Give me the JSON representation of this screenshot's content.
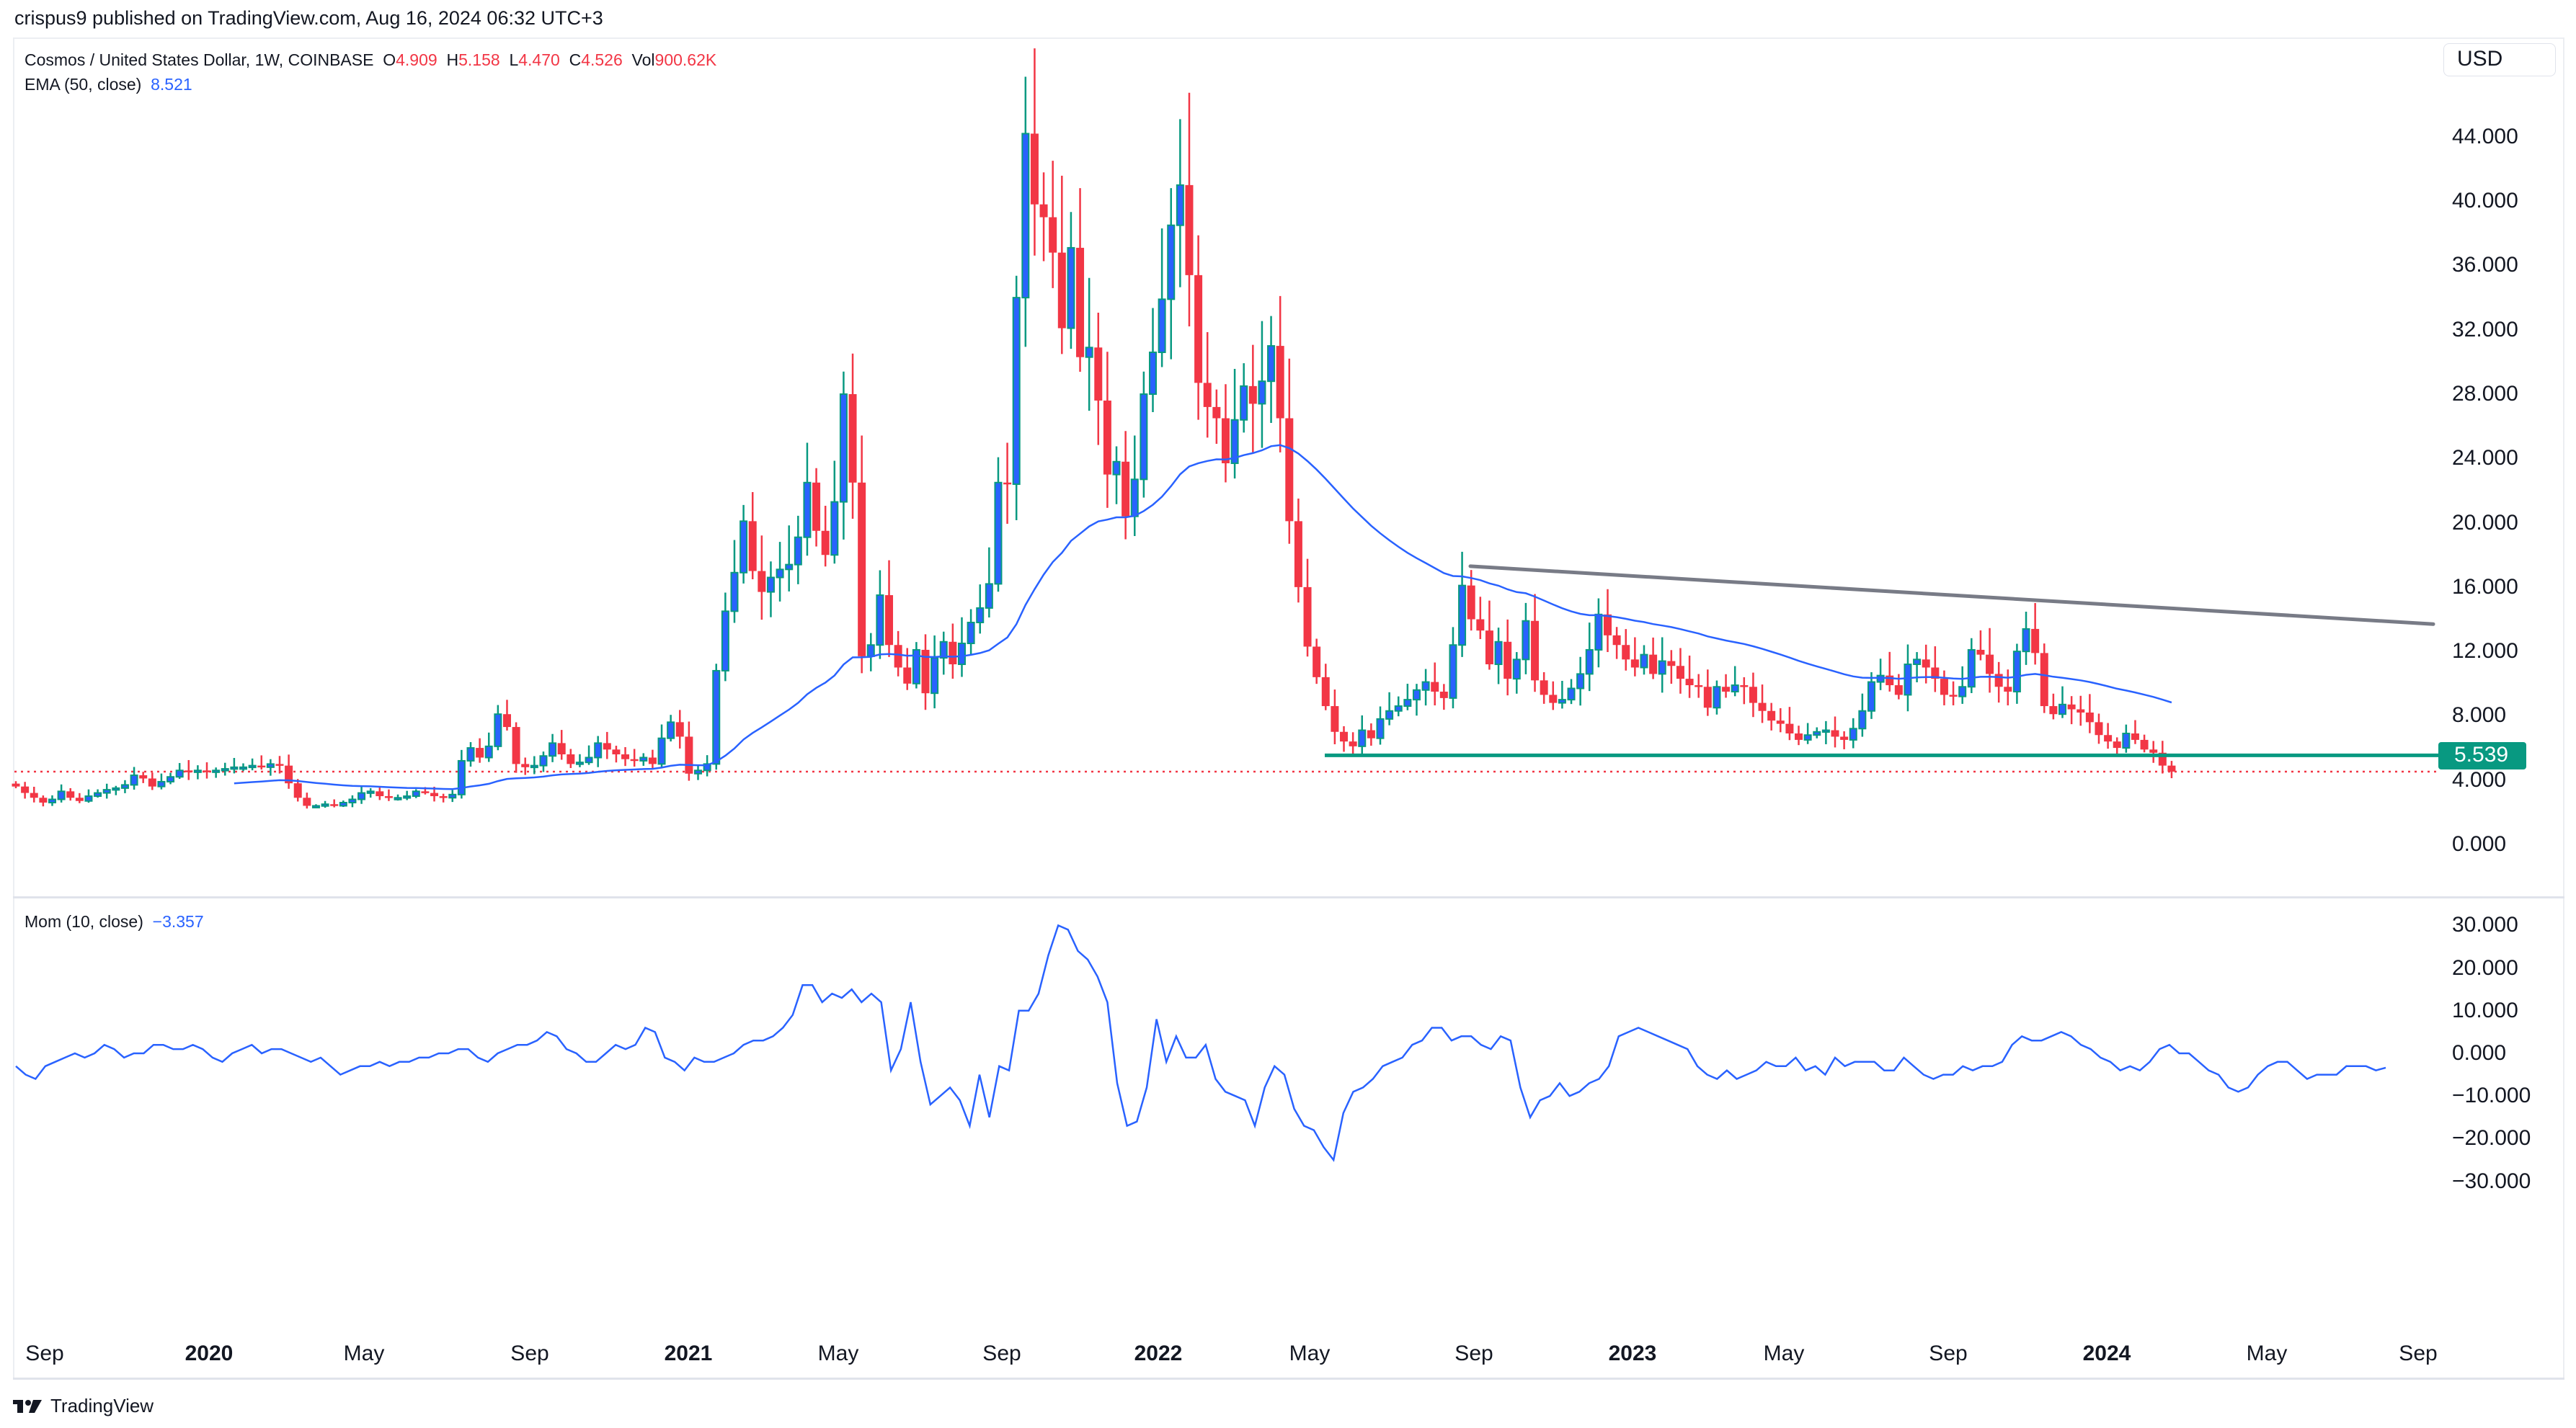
{
  "header": {
    "published": "crispus9 published on TradingView.com, Aug 16, 2024 06:32 UTC+3"
  },
  "legend": {
    "symbol": "Cosmos / United States Dollar, 1W, COINBASE",
    "o_label": "O",
    "o": "4.909",
    "h_label": "H",
    "h": "5.158",
    "l_label": "L",
    "l": "4.470",
    "c_label": "C",
    "c": "4.526",
    "vol_label": "Vol",
    "vol": "900.62K",
    "ema_label": "EMA (50, close)",
    "ema": "8.521",
    "mom_label": "Mom (10, close)",
    "mom": "−3.357"
  },
  "currency_button": "USD",
  "price_tag": "5.539",
  "price_axis": [
    "44.000",
    "40.000",
    "36.000",
    "32.000",
    "28.000",
    "24.000",
    "20.000",
    "16.000",
    "12.000",
    "8.000",
    "4.000",
    "0.000"
  ],
  "mom_axis": [
    "30.000",
    "20.000",
    "10.000",
    "0.000",
    "−10.000",
    "−20.000",
    "−30.000"
  ],
  "time_axis": [
    {
      "label": "Sep",
      "bold": false
    },
    {
      "label": "2020",
      "bold": true
    },
    {
      "label": "May",
      "bold": false
    },
    {
      "label": "Sep",
      "bold": false
    },
    {
      "label": "2021",
      "bold": true
    },
    {
      "label": "May",
      "bold": false
    },
    {
      "label": "Sep",
      "bold": false
    },
    {
      "label": "2022",
      "bold": true
    },
    {
      "label": "May",
      "bold": false
    },
    {
      "label": "Sep",
      "bold": false
    },
    {
      "label": "2023",
      "bold": true
    },
    {
      "label": "May",
      "bold": false
    },
    {
      "label": "Sep",
      "bold": false
    },
    {
      "label": "2024",
      "bold": true
    },
    {
      "label": "May",
      "bold": false
    },
    {
      "label": "Sep",
      "bold": false
    }
  ],
  "footer": {
    "brand": "TradingView"
  },
  "colors": {
    "up_fill": "#2962ff",
    "up_border": "#089981",
    "down": "#f23645",
    "ema": "#2962ff",
    "mom": "#2962ff",
    "trendline": "#787b86",
    "support": "#089981",
    "last_price": "#f23645"
  },
  "chart_data": [
    {
      "type": "candlestick",
      "title": "Cosmos / United States Dollar, 1W, COINBASE",
      "ylabel": "USD",
      "ylim": [
        0,
        46
      ],
      "x_range": [
        "2019-08",
        "2024-09"
      ],
      "x_ticks": [
        "Sep",
        "2020",
        "May",
        "Sep",
        "2021",
        "May",
        "Sep",
        "2022",
        "May",
        "Sep",
        "2023",
        "May",
        "Sep",
        "2024",
        "May",
        "Sep"
      ],
      "y_ticks": [
        0,
        4,
        8,
        12,
        16,
        20,
        24,
        28,
        32,
        36,
        40,
        44
      ],
      "last": {
        "open": 4.909,
        "high": 5.158,
        "low": 4.47,
        "close": 4.526,
        "volume": "900.62K"
      },
      "overlays": [
        {
          "name": "EMA (50, close)",
          "last": 8.521
        },
        {
          "name": "Descending trendline",
          "from": {
            "x": "2022-09",
            "y": 17.3
          },
          "to": {
            "x": "2024-08",
            "y": 13.7
          }
        },
        {
          "name": "Horizontal support",
          "y": 5.539,
          "from_x": "2022-05"
        },
        {
          "name": "Last price line",
          "y": 4.526,
          "style": "dotted"
        }
      ],
      "closes_weekly": [
        3.6,
        3.2,
        2.9,
        2.6,
        2.8,
        3.3,
        2.9,
        2.7,
        3.0,
        3.2,
        3.4,
        3.5,
        3.7,
        4.3,
        4.1,
        3.6,
        3.9,
        4.2,
        4.6,
        4.5,
        4.6,
        4.5,
        4.6,
        4.7,
        4.8,
        4.8,
        4.9,
        4.8,
        5.0,
        4.9,
        3.8,
        2.9,
        2.4,
        2.4,
        2.5,
        2.4,
        2.6,
        2.8,
        3.2,
        3.3,
        3.0,
        2.9,
        2.9,
        3.0,
        3.3,
        3.2,
        3.0,
        2.9,
        3.1,
        5.2,
        6.0,
        5.4,
        6.1,
        8.1,
        7.3,
        5.0,
        4.8,
        4.9,
        5.5,
        6.3,
        5.6,
        5.0,
        5.1,
        5.4,
        6.3,
        5.9,
        5.6,
        5.3,
        5.2,
        5.4,
        5.0,
        6.6,
        7.6,
        6.7,
        4.4,
        4.6,
        5.0,
        10.8,
        14.5,
        16.9,
        20.1,
        17.0,
        15.7,
        16.6,
        17.1,
        17.4,
        19.1,
        22.5,
        19.5,
        18.0,
        21.3,
        28.0,
        22.5,
        11.7,
        12.4,
        15.5,
        12.4,
        11.0,
        10.0,
        12.1,
        9.4,
        11.6,
        12.6,
        11.2,
        12.5,
        13.8,
        14.7,
        16.2,
        22.5,
        22.4,
        34.0,
        44.2,
        39.8,
        39.0,
        36.8,
        32.1,
        37.1,
        30.3,
        30.9,
        27.6,
        23.0,
        23.8,
        20.4,
        22.7,
        28.0,
        30.6,
        33.9,
        38.5,
        41.0,
        35.4,
        28.7,
        27.2,
        26.5,
        23.7,
        26.4,
        28.5,
        27.4,
        28.8,
        31.0,
        26.5,
        20.1,
        16.0,
        12.3,
        10.4,
        8.6,
        7.0,
        6.4,
        6.1,
        7.1,
        6.6,
        7.8,
        8.3,
        8.6,
        9.0,
        9.6,
        10.1,
        9.5,
        9.1,
        12.4,
        16.1,
        14.0,
        13.3,
        11.2,
        12.6,
        10.3,
        11.5,
        13.9,
        10.2,
        9.3,
        8.8,
        9.0,
        9.7,
        10.6,
        12.1,
        14.3,
        13.0,
        12.4,
        11.5,
        11.0,
        11.8,
        10.6,
        11.4,
        11.1,
        10.3,
        9.9,
        9.8,
        8.5,
        9.8,
        9.5,
        9.9,
        9.8,
        8.8,
        8.3,
        7.7,
        7.5,
        6.9,
        6.5,
        6.8,
        7.0,
        7.1,
        6.7,
        6.5,
        7.2,
        8.3,
        10.1,
        10.5,
        9.9,
        9.3,
        11.2,
        11.5,
        11.0,
        10.3,
        9.3,
        9.2,
        9.8,
        12.1,
        11.8,
        10.6,
        9.8,
        9.5,
        12.0,
        13.4,
        11.9,
        8.6,
        8.1,
        8.7,
        8.4,
        8.2,
        7.6,
        6.8,
        6.4,
        6.0,
        6.9,
        6.5,
        5.9,
        5.7,
        4.9,
        4.526
      ],
      "ema50_last": 8.521
    },
    {
      "type": "line",
      "title": "Mom (10, close)",
      "ylim": [
        -30,
        32
      ],
      "y_ticks": [
        -30,
        -20,
        -10,
        0,
        10,
        20,
        30
      ],
      "last": -3.357,
      "series": [
        {
          "name": "Mom (10, close)",
          "values": [
            -3,
            -5,
            -6,
            -3,
            -2,
            -1,
            0,
            -1,
            0,
            2,
            1,
            -1,
            0,
            0,
            2,
            2,
            1,
            1,
            2,
            1,
            -1,
            -2,
            0,
            1,
            2,
            0,
            1,
            1,
            0,
            -1,
            -2,
            -1,
            -3,
            -5,
            -4,
            -3,
            -3,
            -2,
            -3,
            -2,
            -2,
            -1,
            -1,
            0,
            0,
            1,
            1,
            -1,
            -2,
            0,
            1,
            2,
            2,
            3,
            5,
            4,
            1,
            0,
            -2,
            -2,
            0,
            2,
            1,
            2,
            6,
            5,
            -1,
            -2,
            -4,
            -1,
            -2,
            -2,
            -1,
            0,
            2,
            3,
            3,
            4,
            6,
            9,
            16,
            16,
            12,
            14,
            13,
            15,
            12,
            14,
            12,
            -4,
            1,
            12,
            -2,
            -12,
            -10,
            -8,
            -11,
            -17,
            -5,
            -15,
            -3,
            -4,
            10,
            10,
            14,
            23,
            30,
            29,
            24,
            22,
            18,
            12,
            -7,
            -17,
            -16,
            -8,
            8,
            -2,
            4,
            -1,
            -1,
            2,
            -6,
            -9,
            -10,
            -11,
            -17,
            -8,
            -3,
            -5,
            -13,
            -17,
            -18,
            -22,
            -25,
            -14,
            -9,
            -8,
            -6,
            -3,
            -2,
            -1,
            2,
            3,
            6,
            6,
            3,
            4,
            4,
            2,
            1,
            4,
            3,
            -8,
            -15,
            -11,
            -10,
            -7,
            -10,
            -9,
            -7,
            -6,
            -3,
            4,
            5,
            6,
            5,
            4,
            3,
            2,
            1,
            -3,
            -5,
            -6,
            -4,
            -6,
            -5,
            -4,
            -2,
            -3,
            -3,
            -1,
            -4,
            -3,
            -5,
            -1,
            -3,
            -2,
            -2,
            -2,
            -4,
            -4,
            -1,
            -3,
            -5,
            -6,
            -5,
            -5,
            -3,
            -4,
            -3,
            -3,
            -2,
            2,
            4,
            3,
            3,
            4,
            5,
            4,
            2,
            1,
            -1,
            -2,
            -4,
            -3,
            -4,
            -2,
            1,
            2,
            0,
            0,
            -2,
            -4,
            -5,
            -8,
            -9,
            -8,
            -5,
            -3,
            -2,
            -2,
            -4,
            -6,
            -5,
            -5,
            -5,
            -3,
            -3,
            -3,
            -4,
            -3.357
          ]
        }
      ]
    }
  ]
}
